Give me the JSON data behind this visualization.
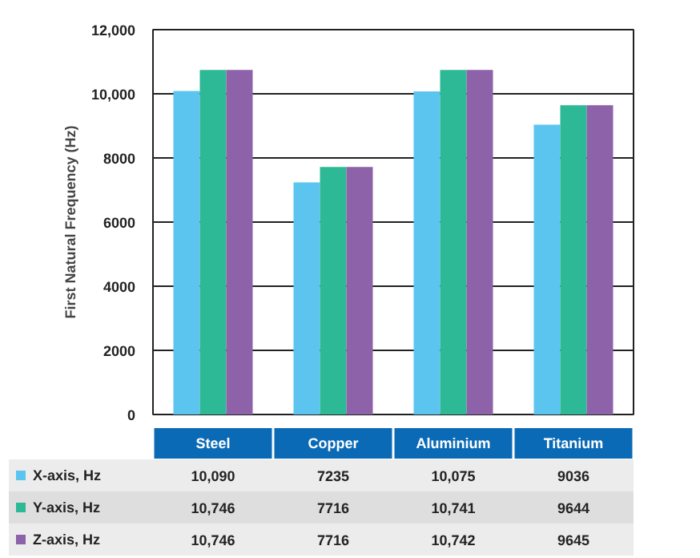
{
  "chart_data": {
    "type": "bar",
    "ylabel": "First Natural Frequency (Hz)",
    "categories": [
      "Steel",
      "Copper",
      "Aluminium",
      "Titanium"
    ],
    "series": [
      {
        "name": "X-axis, Hz",
        "color": "#5bc5f0",
        "values": [
          10090,
          7235,
          10075,
          9036
        ],
        "value_labels": [
          "10,090",
          "7235",
          "10,075",
          "9036"
        ]
      },
      {
        "name": "Y-axis, Hz",
        "color": "#2db896",
        "values": [
          10746,
          7716,
          10741,
          9644
        ],
        "value_labels": [
          "10,746",
          "7716",
          "10,741",
          "9644"
        ]
      },
      {
        "name": "Z-axis, Hz",
        "color": "#8e62a8",
        "values": [
          10746,
          7716,
          10742,
          9645
        ],
        "value_labels": [
          "10,746",
          "7716",
          "10,742",
          "9645"
        ]
      }
    ],
    "ylim": [
      0,
      12000
    ],
    "yticks": [
      0,
      2000,
      4000,
      6000,
      8000,
      {
        "value": 10000,
        "label": "10,000"
      },
      {
        "value": 12000,
        "label": "12,000"
      }
    ],
    "grid": "y",
    "legend": "bottom",
    "tick_labels": "y"
  }
}
